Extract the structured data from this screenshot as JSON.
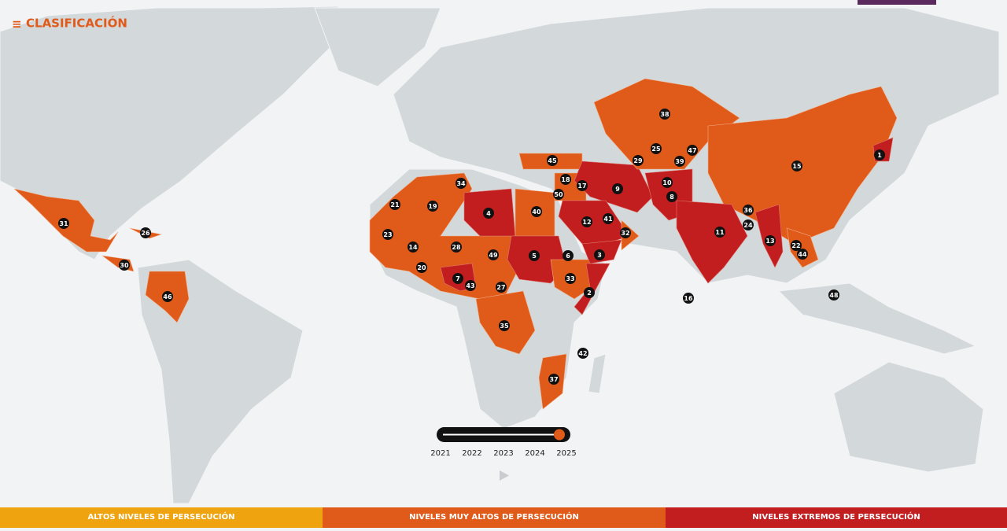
{
  "header": {
    "title": "CLASIFICACIÓN"
  },
  "map": {
    "markers": [
      "38",
      "25",
      "47",
      "29",
      "39",
      "1",
      "15",
      "45",
      "18",
      "17",
      "50",
      "9",
      "10",
      "8",
      "34",
      "21",
      "19",
      "4",
      "40",
      "41",
      "12",
      "32",
      "36",
      "24",
      "11",
      "13",
      "22",
      "44",
      "23",
      "14",
      "28",
      "49",
      "5",
      "6",
      "3",
      "20",
      "7",
      "43",
      "27",
      "33",
      "2",
      "16",
      "48",
      "35",
      "42",
      "37",
      "31",
      "26",
      "30",
      "46"
    ]
  },
  "timeline": {
    "years": [
      "2021",
      "2022",
      "2023",
      "2024",
      "2025"
    ]
  },
  "legend": [
    {
      "label": "ALTOS NIVELES DE PERSECUCIÓN",
      "color": "#eea30f"
    },
    {
      "label": "NIVELES MUY ALTOS DE PERSECUCIÓN",
      "color": "#e05a1a"
    },
    {
      "label": "NIVELES EXTREMOS DE PERSECUCIÓN",
      "color": "#c21d1f"
    }
  ]
}
